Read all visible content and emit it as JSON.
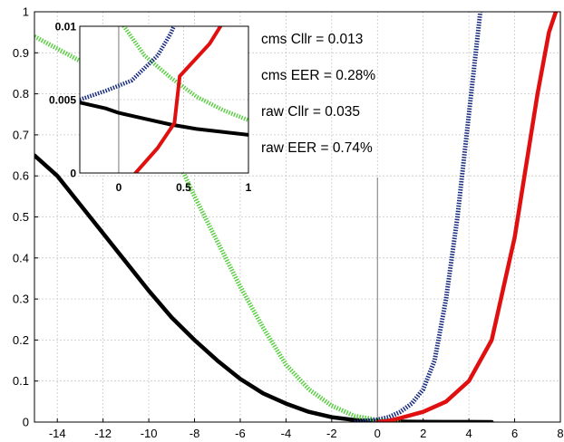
{
  "chart_data": {
    "type": "line",
    "title": "",
    "xlabel": "",
    "ylabel": "",
    "xlim": [
      -15,
      8
    ],
    "ylim": [
      0,
      1
    ],
    "grid": true,
    "x_ticks": [
      "-14",
      "-12",
      "-10",
      "-8",
      "-6",
      "-4",
      "-2",
      "0",
      "2",
      "4",
      "6",
      "8"
    ],
    "y_ticks": [
      "0",
      "0.1",
      "0.2",
      "0.3",
      "0.4",
      "0.5",
      "0.6",
      "0.7",
      "0.8",
      "0.9",
      "1"
    ],
    "vertical_reference_x": 0,
    "series": [
      {
        "color": "#000000",
        "style": "solid",
        "x": [
          -15,
          -14,
          -13,
          -12,
          -11,
          -10,
          -9,
          -8,
          -7,
          -6,
          -5,
          -4,
          -3,
          -2,
          -1,
          0,
          1,
          2,
          3,
          4,
          5
        ],
        "y": [
          0.65,
          0.6,
          0.53,
          0.46,
          0.39,
          0.32,
          0.255,
          0.2,
          0.15,
          0.105,
          0.07,
          0.045,
          0.025,
          0.012,
          0.005,
          0.002,
          0.001,
          0.0005,
          0.0003,
          0.0002,
          0.0001
        ]
      },
      {
        "color": "#5ccf45",
        "style": "dotted",
        "x": [
          -15,
          -14,
          -13,
          -12,
          -11,
          -10,
          -9,
          -8,
          -7,
          -6,
          -5,
          -4,
          -3,
          -2,
          -1,
          0,
          0.5,
          1
        ],
        "y": [
          0.94,
          0.91,
          0.88,
          0.84,
          0.8,
          0.75,
          0.67,
          0.55,
          0.44,
          0.33,
          0.23,
          0.14,
          0.08,
          0.04,
          0.015,
          0.005,
          0.003,
          0.002
        ]
      },
      {
        "color": "#1a2d80",
        "style": "dotted",
        "x": [
          -1,
          0,
          0.5,
          1,
          1.5,
          2,
          2.5,
          3,
          3.5,
          4,
          4.5
        ],
        "y": [
          0,
          0.006,
          0.012,
          0.025,
          0.045,
          0.08,
          0.15,
          0.3,
          0.5,
          0.75,
          1.0
        ]
      },
      {
        "color": "#e01010",
        "style": "solid",
        "x": [
          0,
          0.5,
          1,
          2,
          3,
          4,
          5,
          6,
          7,
          7.5,
          7.8
        ],
        "y": [
          0,
          0.003,
          0.01,
          0.025,
          0.05,
          0.1,
          0.2,
          0.45,
          0.8,
          0.95,
          1.0
        ]
      }
    ],
    "annotations": [
      "cms Cllr = 0.013",
      "cms EER = 0.28%",
      "raw Cllr = 0.035",
      "raw EER = 0.74%"
    ],
    "inset": {
      "xlim": [
        -0.3,
        1
      ],
      "ylim": [
        0,
        0.01
      ],
      "x_ticks": [
        "0",
        "0.5",
        "1"
      ],
      "y_ticks": [
        "0",
        "0.005",
        "0.01"
      ],
      "vertical_reference_x": 0,
      "series": [
        {
          "color": "#000000",
          "style": "solid",
          "x": [
            -0.3,
            -0.1,
            0,
            0.2,
            0.4,
            0.6,
            0.8,
            1.0
          ],
          "y": [
            0.0048,
            0.0044,
            0.0041,
            0.0037,
            0.0033,
            0.003,
            0.0028,
            0.0026
          ]
        },
        {
          "color": "#5ccf45",
          "style": "dotted",
          "x": [
            -0.3,
            -0.1,
            0,
            0.2,
            0.4,
            0.6,
            0.8,
            1.0
          ],
          "y": [
            0.0145,
            0.0118,
            0.0105,
            0.008,
            0.0065,
            0.0052,
            0.0043,
            0.0036
          ]
        },
        {
          "color": "#1a2d80",
          "style": "dotted",
          "x": [
            -0.3,
            -0.1,
            0.1,
            0.3,
            0.4,
            0.5
          ],
          "y": [
            0.005,
            0.0056,
            0.0063,
            0.008,
            0.0095,
            0.0115
          ]
        },
        {
          "color": "#e01010",
          "style": "solid",
          "x": [
            0.13,
            0.3,
            0.43,
            0.47,
            0.7,
            0.82
          ],
          "y": [
            0,
            0.0017,
            0.0034,
            0.0066,
            0.0088,
            0.0105
          ]
        }
      ]
    }
  }
}
